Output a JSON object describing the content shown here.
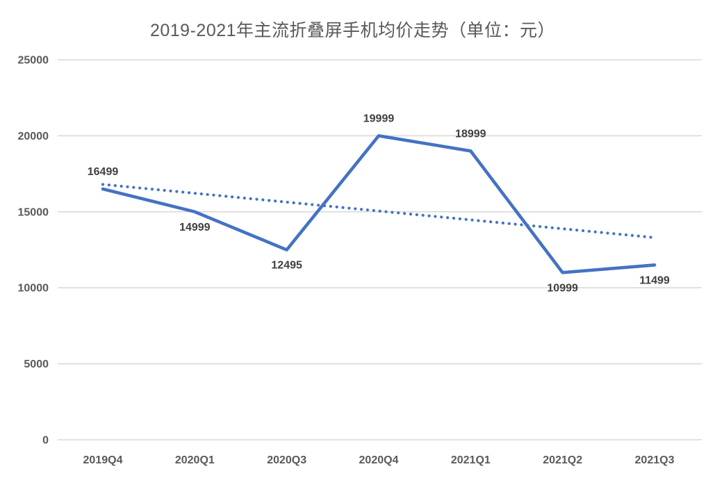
{
  "chart_data": {
    "type": "line",
    "title": "2019-2021年主流折叠屏手机均价走势（单位：元）",
    "categories": [
      "2019Q4",
      "2020Q1",
      "2020Q3",
      "2020Q4",
      "2021Q1",
      "2021Q2",
      "2021Q3"
    ],
    "series": [
      {
        "name": "主流折叠屏手机均价",
        "type": "line",
        "style": "solid",
        "values": [
          16499,
          14999,
          12495,
          19999,
          18999,
          10999,
          11499
        ],
        "data_labels": [
          "16499",
          "14999",
          "12495",
          "19999",
          "18999",
          "10999",
          "11499"
        ],
        "label_placement": [
          "above",
          "below",
          "below",
          "above",
          "above",
          "below",
          "below"
        ]
      },
      {
        "name": "趋势线",
        "type": "trendline",
        "style": "dotted",
        "start_value": 16800,
        "end_value": 13300
      }
    ],
    "xlabel": "",
    "ylabel": "",
    "y_axis": {
      "min": 0,
      "max": 25000,
      "ticks": [
        0,
        5000,
        10000,
        15000,
        20000,
        25000
      ],
      "tick_labels": [
        "0",
        "5000",
        "10000",
        "15000",
        "20000",
        "25000"
      ]
    },
    "grid": true,
    "legend_position": "none"
  },
  "colors": {
    "line": "#4472C4",
    "trendline": "#4472C4",
    "gridline": "#D9D9D9",
    "title_text": "#595959",
    "axis_label_text": "#595959",
    "data_label_text": "#3F3F3F",
    "background": "#FFFFFF"
  }
}
